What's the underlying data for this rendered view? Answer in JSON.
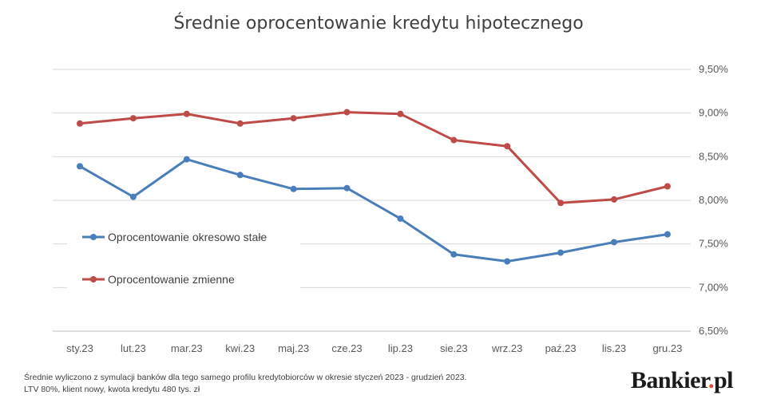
{
  "chart_data": {
    "type": "line",
    "title": "Średnie oprocentowanie kredytu hipotecznego",
    "categories": [
      "sty.23",
      "lut.23",
      "mar.23",
      "kwi.23",
      "maj.23",
      "cze.23",
      "lip.23",
      "sie.23",
      "wrz.23",
      "paź.23",
      "lis.23",
      "gru.23"
    ],
    "series": [
      {
        "name": "Oprocentowanie okresowo stałe",
        "color": "#4a7ebb",
        "values": [
          8.39,
          8.04,
          8.47,
          8.29,
          8.13,
          8.14,
          7.79,
          7.38,
          7.3,
          7.4,
          7.52,
          7.61
        ]
      },
      {
        "name": "Oprocentowanie zmienne",
        "color": "#be4b48",
        "values": [
          8.88,
          8.94,
          8.99,
          8.88,
          8.94,
          9.01,
          8.99,
          8.69,
          8.62,
          7.97,
          8.01,
          8.16
        ]
      }
    ],
    "ylim": [
      6.5,
      9.5
    ],
    "yticks": [
      "6,50%",
      "7,00%",
      "7,50%",
      "8,00%",
      "8,50%",
      "9,00%",
      "9,50%"
    ],
    "grid": true,
    "legend_position": "left"
  },
  "footnote": {
    "line1": "Średnie wyliczono z symulacji banków dla tego samego profilu kredytobiorców w okresie styczeń 2023 - grudzień 2023.",
    "line2": "LTV 80%, klient nowy, kwota kredytu 480 tys. zł"
  },
  "brand": {
    "name": "Bankier",
    "dot": ".",
    "tld": "pl"
  }
}
